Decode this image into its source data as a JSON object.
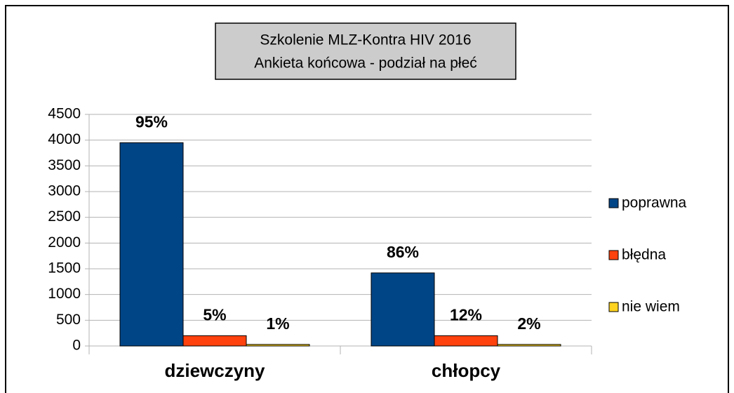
{
  "chart_data": {
    "type": "bar",
    "title": [
      "Szkolenie MLZ-Kontra HIV 2016",
      "Ankieta końcowa - podział na płeć"
    ],
    "categories": [
      "dziewczyny",
      "chłopcy"
    ],
    "series": [
      {
        "name": "poprawna",
        "color": "#004586",
        "values": [
          3950,
          1420
        ],
        "value_labels": [
          "95%",
          "86%"
        ]
      },
      {
        "name": "błędna",
        "color": "#ff420e",
        "values": [
          200,
          200
        ],
        "value_labels": [
          "5%",
          "12%"
        ]
      },
      {
        "name": "nie wiem",
        "color": "#ffd320",
        "values": [
          30,
          30
        ],
        "value_labels": [
          "1%",
          "2%"
        ]
      }
    ],
    "ylim": [
      0,
      4500
    ],
    "yticks": [
      0,
      500,
      1000,
      1500,
      2000,
      2500,
      3000,
      3500,
      4000,
      4500
    ],
    "grid": true,
    "legend": "right"
  }
}
